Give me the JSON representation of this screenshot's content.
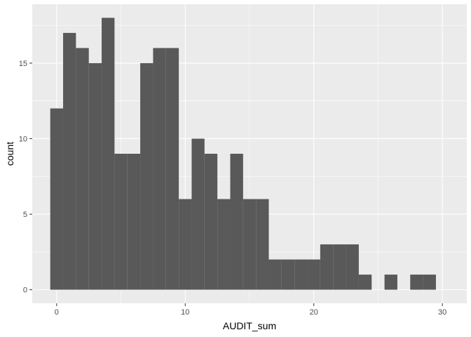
{
  "chart_data": {
    "type": "bar",
    "xlabel": "AUDIT_sum",
    "ylabel": "count",
    "xlim": [
      -1.9,
      31.9
    ],
    "ylim": [
      -0.9,
      18.9
    ],
    "x_ticks": [
      0,
      10,
      20,
      30
    ],
    "x_tick_labels": [
      "0",
      "10",
      "20",
      "30"
    ],
    "y_ticks": [
      0,
      5,
      10,
      15
    ],
    "y_tick_labels": [
      "0",
      "5",
      "10",
      "15"
    ],
    "bin_width": 1,
    "x": [
      0,
      1,
      2,
      3,
      4,
      5,
      6,
      7,
      8,
      9,
      10,
      11,
      12,
      13,
      14,
      15,
      16,
      17,
      18,
      19,
      20,
      21,
      22,
      23,
      24,
      25,
      26,
      27,
      28,
      29
    ],
    "values": [
      12,
      17,
      16,
      15,
      18,
      9,
      9,
      15,
      16,
      16,
      6,
      10,
      9,
      6,
      9,
      6,
      6,
      2,
      2,
      2,
      2,
      3,
      3,
      3,
      1,
      0,
      1,
      0,
      1,
      1
    ],
    "grid": true,
    "colors": {
      "panel": "#ebebeb",
      "grid_major": "#ffffff",
      "bar": "#595959"
    }
  }
}
